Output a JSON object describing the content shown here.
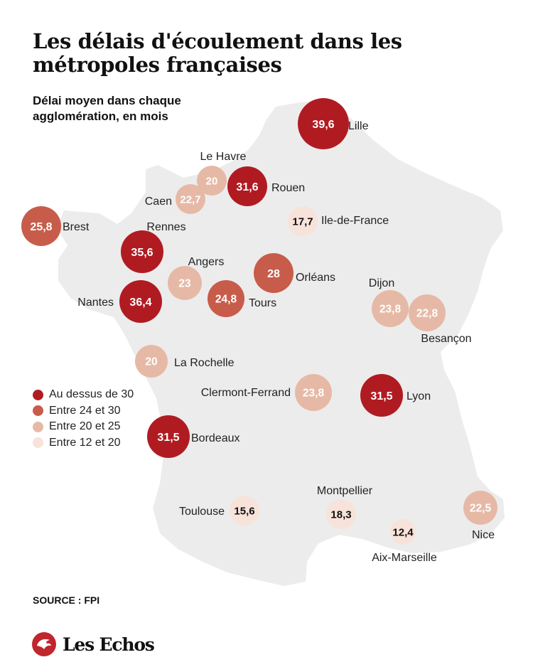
{
  "header": {
    "title": "Les délais d'écoulement dans les métropoles françaises",
    "subtitle": "Délai moyen dans chaque agglomération, en mois"
  },
  "legend": [
    {
      "label": "Au dessus de 30",
      "color": "#b01b22"
    },
    {
      "label": "Entre 24 et 30",
      "color": "#c85c4a"
    },
    {
      "label": "Entre 20 et 25",
      "color": "#e6b9a6"
    },
    {
      "label": "Entre 12 et 20",
      "color": "#f7e3da"
    }
  ],
  "cities": [
    {
      "name": "Lille",
      "value": "39,6",
      "tier": 0
    },
    {
      "name": "Le Havre",
      "value": "20",
      "tier": 2
    },
    {
      "name": "Rouen",
      "value": "31,6",
      "tier": 0
    },
    {
      "name": "Caen",
      "value": "22,7",
      "tier": 2
    },
    {
      "name": "Brest",
      "value": "25,8",
      "tier": 1
    },
    {
      "name": "Ile-de-France",
      "value": "17,7",
      "tier": 3
    },
    {
      "name": "Rennes",
      "value": "35,6",
      "tier": 0
    },
    {
      "name": "Angers",
      "value": "23",
      "tier": 2
    },
    {
      "name": "Orléans",
      "value": "28",
      "tier": 1
    },
    {
      "name": "Nantes",
      "value": "36,4",
      "tier": 0
    },
    {
      "name": "Tours",
      "value": "24,8",
      "tier": 1
    },
    {
      "name": "Dijon",
      "value": "23,8",
      "tier": 2
    },
    {
      "name": "Besançon",
      "value": "22,8",
      "tier": 2
    },
    {
      "name": "La Rochelle",
      "value": "20",
      "tier": 2
    },
    {
      "name": "Clermont-Ferrand",
      "value": "23,8",
      "tier": 2
    },
    {
      "name": "Lyon",
      "value": "31,5",
      "tier": 0
    },
    {
      "name": "Bordeaux",
      "value": "31,5",
      "tier": 0
    },
    {
      "name": "Montpellier",
      "value": "18,3",
      "tier": 3
    },
    {
      "name": "Toulouse",
      "value": "15,6",
      "tier": 3
    },
    {
      "name": "Nice",
      "value": "22,5",
      "tier": 2
    },
    {
      "name": "Aix-Marseille",
      "value": "12,4",
      "tier": 3
    }
  ],
  "source": "SOURCE : FPI",
  "logo_text": "Les Echos",
  "colors": {
    "map_fill": "#ececec",
    "logo_red": "#c0262d"
  }
}
